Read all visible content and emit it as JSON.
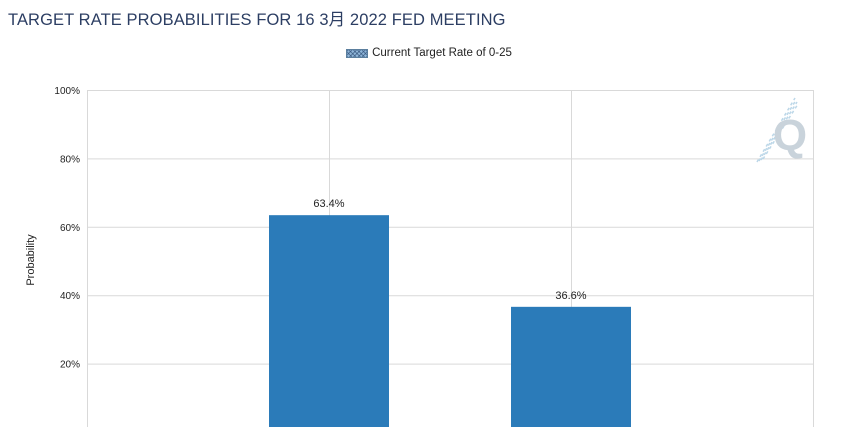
{
  "header": {
    "title": "TARGET RATE PROBABILITIES FOR 16 3月 2022 FED MEETING"
  },
  "legend": {
    "entries": [
      {
        "label": "Current Target Rate of 0-25",
        "pattern": "crosshatch",
        "color": "#8fb6d9"
      }
    ]
  },
  "watermark": {
    "letter": "Q"
  },
  "chart_data": {
    "type": "bar",
    "title": "TARGET RATE PROBABILITIES FOR 16 3月 2022 FED MEETING",
    "ylabel": "Probability",
    "xlabel": "",
    "categories": [
      "",
      ""
    ],
    "values": [
      63.4,
      36.6
    ],
    "data_labels": [
      "63.4%",
      "36.6%"
    ],
    "ylim": [
      0,
      100
    ],
    "yticks": [
      20,
      40,
      60,
      80,
      100
    ],
    "ytick_labels": [
      "20%",
      "40%",
      "60%",
      "80%",
      "100%"
    ],
    "bar_color": "#2b7bb9",
    "grid": true,
    "legend_position": "top-center"
  }
}
